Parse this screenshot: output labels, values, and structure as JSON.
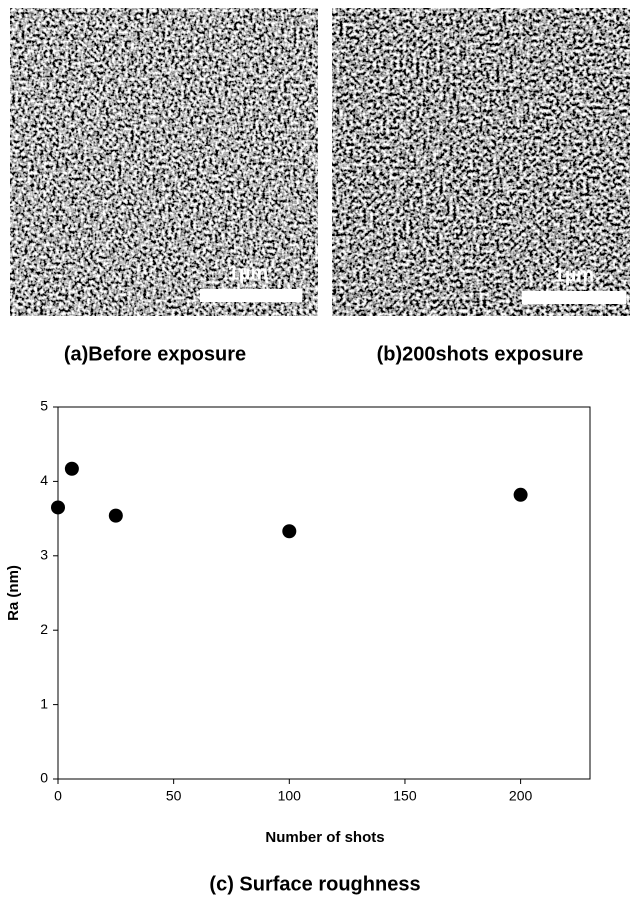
{
  "images": [
    {
      "caption": "(a)Before exposure",
      "scale_label": "1µm"
    },
    {
      "caption": "(b)200shots exposure",
      "scale_label": "1µm"
    }
  ],
  "chart_data": {
    "type": "scatter",
    "caption": "(c) Surface roughness",
    "x_label": "Number of shots",
    "y_label": "Ra (nm)",
    "series": [
      {
        "color": "#000000",
        "x": [
          0,
          6,
          25,
          100,
          200
        ],
        "values": [
          3.65,
          4.17,
          3.54,
          3.33,
          3.82
        ]
      }
    ],
    "xlim": [
      0,
      230
    ],
    "ylim": [
      0,
      5
    ],
    "xticks": [
      0,
      50,
      100,
      150,
      200
    ],
    "yticks": [
      0,
      1,
      2,
      3,
      4,
      5
    ],
    "grid": false
  }
}
